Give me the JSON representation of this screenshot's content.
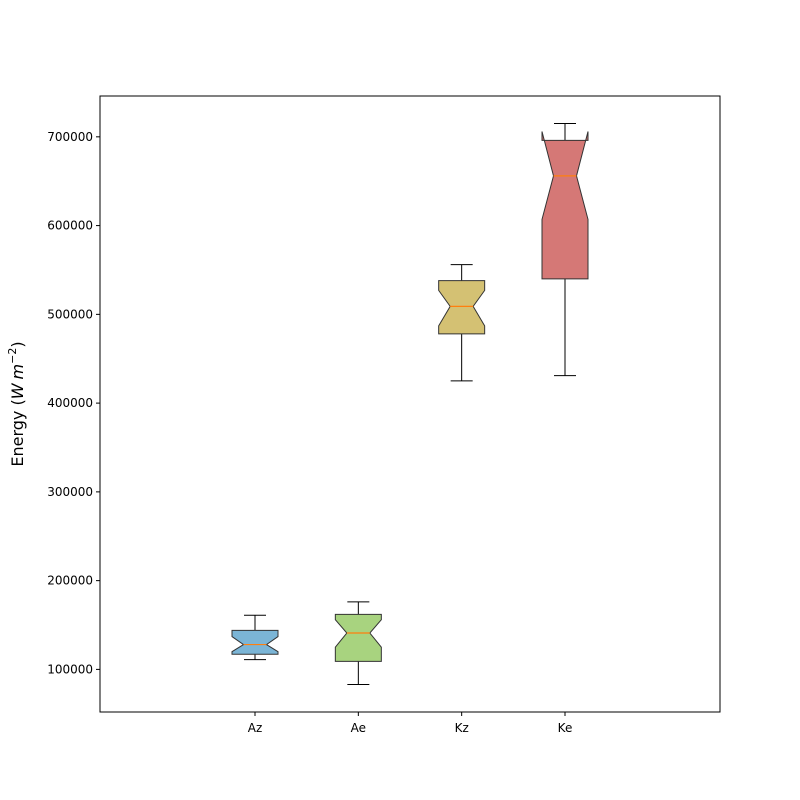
{
  "chart_data": {
    "type": "boxplot",
    "notched": true,
    "title": "",
    "xlabel": "",
    "ylabel": "Energy (W m⁻²)",
    "ylabel_prefix": "Energy (",
    "ylabel_unit_w": "W",
    "ylabel_unit_m": "m",
    "ylabel_exponent": "−2",
    "ylabel_suffix": ")",
    "ylim": [
      52000,
      746000
    ],
    "yticks": [
      100000,
      200000,
      300000,
      400000,
      500000,
      600000,
      700000
    ],
    "ytick_labels": [
      "100000",
      "200000",
      "300000",
      "400000",
      "500000",
      "600000",
      "700000"
    ],
    "xlim": [
      -0.5,
      5.5
    ],
    "categories": [
      "Az",
      "Ae",
      "Kz",
      "Ke"
    ],
    "grid": false,
    "boxes": [
      {
        "label": "Az",
        "whisker_low": 111000,
        "q1": 117000,
        "median": 128000,
        "q3": 144000,
        "whisker_high": 161000,
        "notch_low": 120000,
        "notch_high": 137000,
        "color": "#7bb5d6"
      },
      {
        "label": "Ae",
        "whisker_low": 83000,
        "q1": 109000,
        "median": 141000,
        "q3": 162000,
        "whisker_high": 176000,
        "notch_low": 125000,
        "notch_high": 156000,
        "color": "#a8d37f"
      },
      {
        "label": "Kz",
        "whisker_low": 425000,
        "q1": 478000,
        "median": 509000,
        "q3": 538000,
        "whisker_high": 556000,
        "notch_low": 487000,
        "notch_high": 527000,
        "color": "#d4c173"
      },
      {
        "label": "Ke",
        "whisker_low": 431000,
        "q1": 540000,
        "median": 656000,
        "q3": 696000,
        "whisker_high": 715000,
        "notch_low": 607000,
        "notch_high": 706000,
        "color": "#d57876"
      }
    ],
    "median_color": "#ff7f0e",
    "edge_color": "#333333"
  }
}
